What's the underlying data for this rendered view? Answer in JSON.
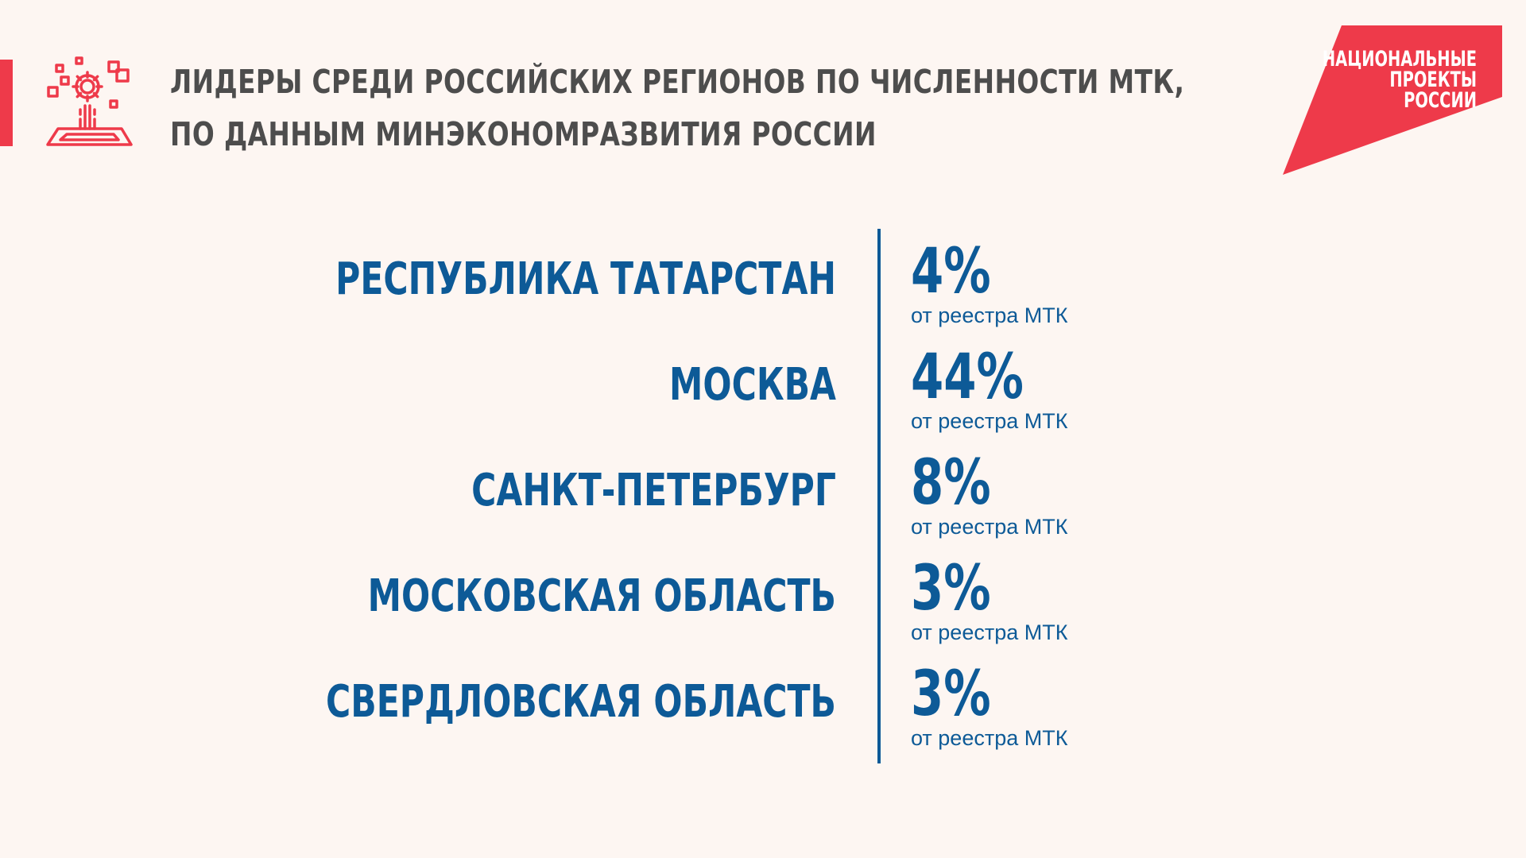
{
  "header": {
    "title_line1": "ЛИДЕРЫ СРЕДИ РОССИЙСКИХ РЕГИОНОВ ПО ЧИСЛЕННОСТИ МТК,",
    "title_line2": "ПО ДАННЫМ МИНЭКОНОМРАЗВИТИЯ РОССИИ",
    "icon": "gear-blocks-icon",
    "accent_color": "#ee3a4a"
  },
  "logo": {
    "line1": "НАЦИОНАЛЬНЫЕ",
    "line2": "ПРОЕКТЫ",
    "line3": "РОССИИ",
    "color": "#ee3a4a"
  },
  "rows": [
    {
      "region": "РЕСПУБЛИКА ТАТАРСТАН",
      "value": "4%",
      "subtitle": "от реестра МТК"
    },
    {
      "region": "МОСКВА",
      "value": "44%",
      "subtitle": "от реестра МТК"
    },
    {
      "region": "САНКТ-ПЕТЕРБУРГ",
      "value": "8%",
      "subtitle": "от реестра МТК"
    },
    {
      "region": "МОСКОВСКАЯ ОБЛАСТЬ",
      "value": "3%",
      "subtitle": "от реестра МТК"
    },
    {
      "region": "СВЕРДЛОВСКАЯ ОБЛАСТЬ",
      "value": "3%",
      "subtitle": "от реестра МТК"
    }
  ],
  "colors": {
    "primary": "#0d5a97",
    "title": "#4d4d4d",
    "background": "#fdf6f2"
  }
}
